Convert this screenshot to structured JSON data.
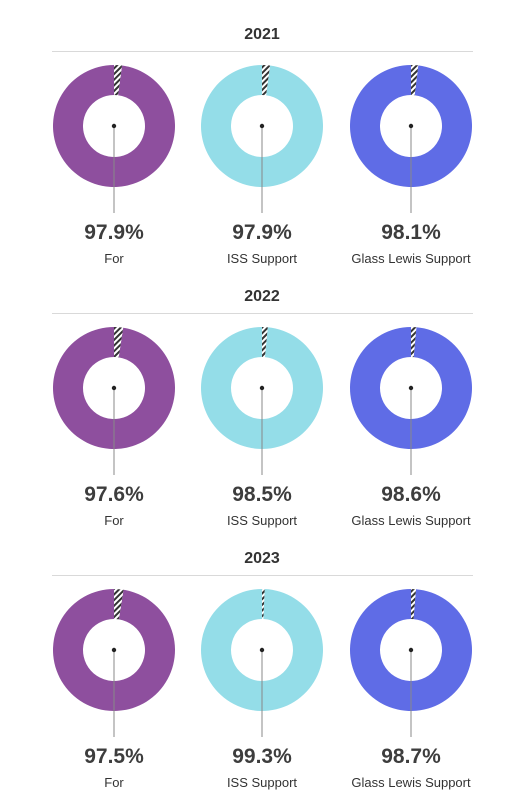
{
  "chart_data": [
    {
      "type": "pie",
      "title": "2021",
      "series": [
        {
          "name": "For",
          "value": 97.9,
          "label": "97.9%",
          "color": "#8E4F9E"
        },
        {
          "name": "ISS Support",
          "value": 97.9,
          "label": "97.9%",
          "color": "#94DDE8"
        },
        {
          "name": "Glass Lewis Support",
          "value": 98.1,
          "label": "98.1%",
          "color": "#5F6CE6"
        }
      ]
    },
    {
      "type": "pie",
      "title": "2022",
      "series": [
        {
          "name": "For",
          "value": 97.6,
          "label": "97.6%",
          "color": "#8E4F9E"
        },
        {
          "name": "ISS Support",
          "value": 98.5,
          "label": "98.5%",
          "color": "#94DDE8"
        },
        {
          "name": "Glass Lewis Support",
          "value": 98.6,
          "label": "98.6%",
          "color": "#5F6CE6"
        }
      ]
    },
    {
      "type": "pie",
      "title": "2023",
      "series": [
        {
          "name": "For",
          "value": 97.5,
          "label": "97.5%",
          "color": "#8E4F9E"
        },
        {
          "name": "ISS Support",
          "value": 99.3,
          "label": "99.3%",
          "color": "#94DDE8"
        },
        {
          "name": "Glass Lewis Support",
          "value": 98.7,
          "label": "98.7%",
          "color": "#5F6CE6"
        }
      ]
    }
  ],
  "colors": {
    "divider": "#d9d9d9",
    "remainder_stripe": "#333333",
    "leader_line": "#888888"
  }
}
